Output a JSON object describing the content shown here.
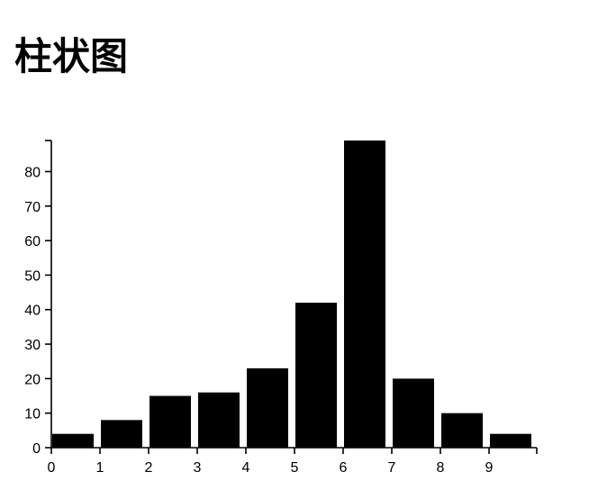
{
  "page": {
    "title": "柱状图"
  },
  "chart_data": {
    "type": "bar",
    "title": "柱状图",
    "categories": [
      "0",
      "1",
      "2",
      "3",
      "4",
      "5",
      "6",
      "7",
      "8",
      "9"
    ],
    "values": [
      4,
      8,
      15,
      16,
      23,
      42,
      89,
      20,
      10,
      4
    ],
    "xlabel": "",
    "ylabel": "",
    "ylim": [
      0,
      89
    ],
    "y_ticks": [
      0,
      10,
      20,
      30,
      40,
      50,
      60,
      70,
      80
    ],
    "grid": false,
    "legend": "none",
    "bar_color": "#000000"
  }
}
